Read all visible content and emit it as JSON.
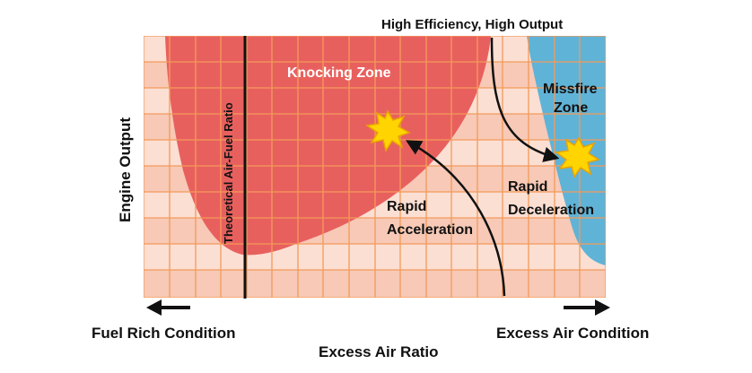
{
  "labels": {
    "top": "High Efficiency, High Output",
    "knocking": "Knocking Zone",
    "missfire_1": "Missfire",
    "missfire_2": "Zone",
    "theoretical": "Theoretical Air-Fuel Ratio",
    "rapid_acc_1": "Rapid",
    "rapid_acc_2": "Acceleration",
    "rapid_dec_1": "Rapid",
    "rapid_dec_2": "Deceleration",
    "y_axis": "Engine Output",
    "x_axis": "Excess Air Ratio",
    "fuel_rich": "Fuel Rich Condition",
    "excess_air": "Excess Air Condition"
  },
  "colors": {
    "grid_bg": "#fbdfd3",
    "grid_band": "#f7c9b6",
    "grid_line": "#f39a5a",
    "knocking": "#e8605e",
    "missfire": "#5fb3d7",
    "star": "#ffd400",
    "star_stroke": "#e8a300",
    "text": "#111111",
    "zone_text": "#ffffff"
  },
  "icons": {
    "star": "explosion-star-icon",
    "arrow_left": "arrow-left-icon",
    "arrow_right": "arrow-right-icon"
  }
}
